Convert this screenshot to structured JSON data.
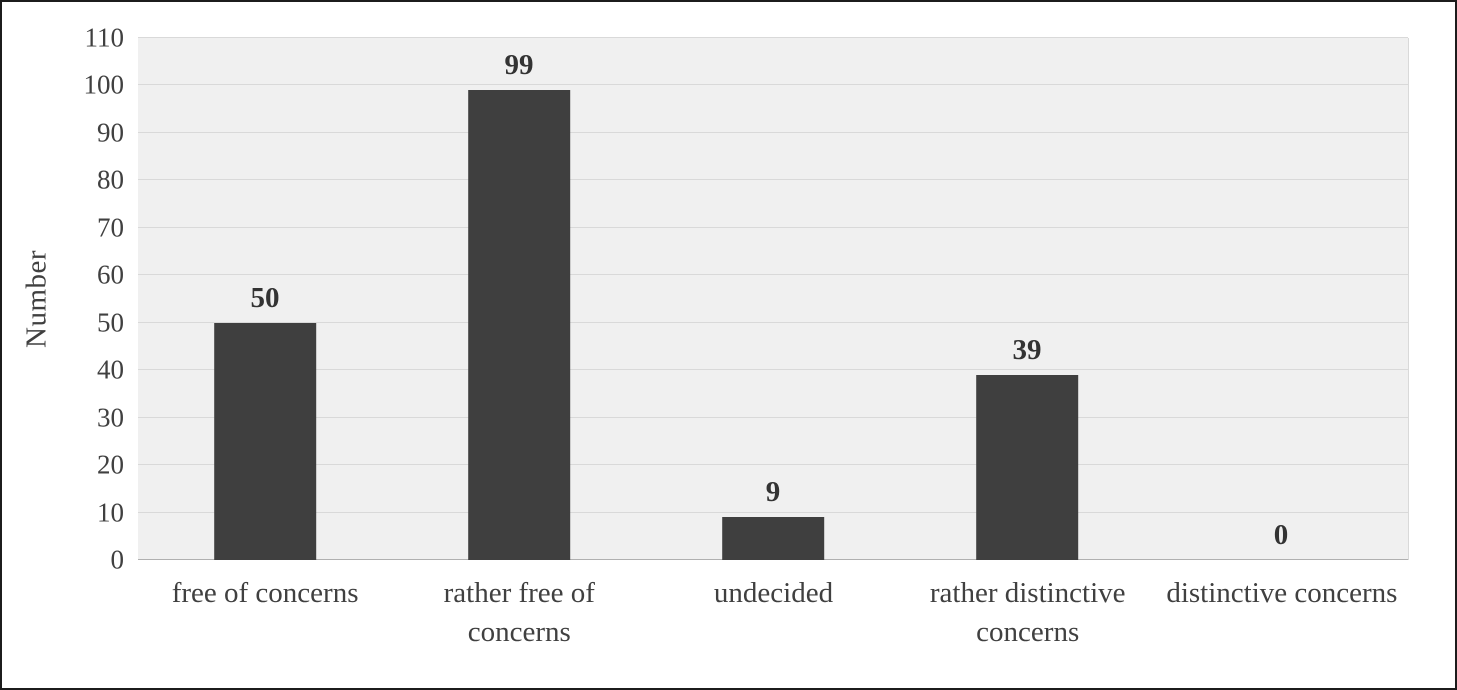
{
  "chart_data": {
    "type": "bar",
    "categories": [
      "free of concerns",
      "rather free of concerns",
      "undecided",
      "rather distinctive concerns",
      "distinctive concerns"
    ],
    "values": [
      50,
      99,
      9,
      39,
      0
    ],
    "title": "",
    "xlabel": "",
    "ylabel": "Number",
    "ylim": [
      0,
      110
    ],
    "ytick_step": 10,
    "grid": true,
    "legend": false,
    "colors": {
      "bar": "#3f3f3f",
      "plot_background": "#f0f0f0",
      "gridline": "#d9d9d9",
      "axis_line": "#b0b0b0",
      "text": "#404040",
      "frame_border": "#1c1c1c"
    }
  }
}
